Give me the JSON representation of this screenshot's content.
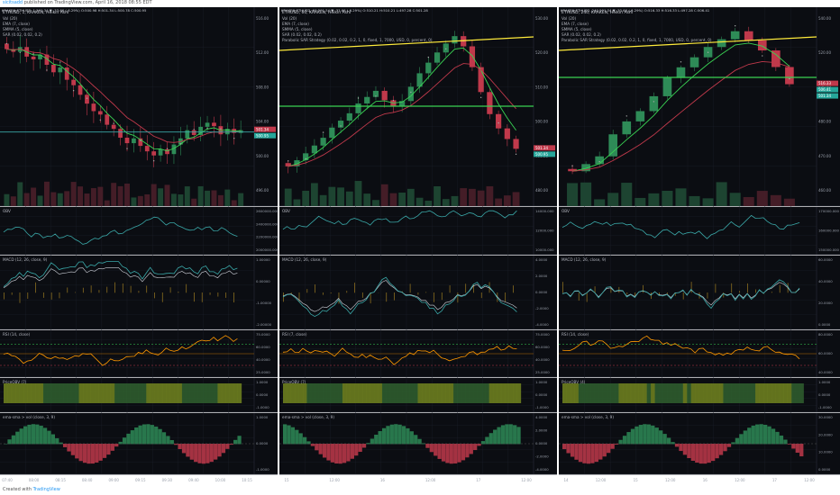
{
  "header": {
    "author": "sicitsadd",
    "published": "published on TradingView.com, April 16, 2018 08:55 EDT"
  },
  "footer": {
    "created_with": "Created with",
    "brand": "TradingView"
  },
  "colors": {
    "bg": "#0b0d12",
    "grid": "#1c2028",
    "up": "#2e8b57",
    "down": "#c0394b",
    "yellow": "#ffeb3b",
    "green": "#39d353",
    "teal": "#3aa8a8",
    "orange": "#ff9800"
  },
  "chart_data": [
    {
      "type": "candlestick",
      "title": "ETHUSD, 1, KRAKEN, Heikin Ashi",
      "symbol_line": "KRAKEN:ETHUSD, 1 501.34 ▼ -33.66 (-6.29%) O:500.98 H:501.34 L:500.78 C:500.95",
      "indicators_legend": [
        "Vol (20)",
        "EMA (7, close)",
        "SMMA (5, close)",
        "SAR (0.02, 0.02, 0.2)"
      ],
      "x_ticks": [
        "07:40",
        "08:00",
        "08:15",
        "08:40",
        "09:00",
        "09:15",
        "09:30",
        "09:40",
        "10:00",
        "10:15"
      ],
      "price_ticks": [
        "516.00",
        "512.00",
        "508.00",
        "504.00",
        "500.00",
        "496.00"
      ],
      "price_labels": [
        "501.34",
        "500.95"
      ],
      "closes": [
        513.2,
        512.8,
        513.5,
        512.1,
        511.7,
        512.4,
        510.9,
        509.8,
        510.5,
        508.7,
        507.9,
        506.5,
        505.2,
        504.1,
        503.6,
        502.1,
        501.5,
        500.2,
        499.4,
        500.1,
        499.0,
        498.2,
        497.6,
        498.5,
        497.8,
        499.2,
        500.1,
        501.3,
        500.6,
        501.8,
        502.4,
        501.9,
        500.7,
        501.5,
        500.9,
        501.3
      ],
      "indicators": [
        {
          "name": "OBV",
          "ticks": [
            "2600000.000",
            "2400000.000",
            "2200000.000",
            "2000000.000"
          ]
        },
        {
          "name": "MACD (12, 26, close, 9)",
          "ticks": [
            "1.00000",
            "0.00000",
            "-1.00000",
            "-2.00000"
          ]
        },
        {
          "name": "RSI (14, close)",
          "ticks": [
            "75.0000",
            "60.0000",
            "40.0000",
            "25.0000"
          ]
        },
        {
          "name": "PriceOBV (7)",
          "ticks": [
            "1.0000",
            "0.0000",
            "-1.0000"
          ]
        },
        {
          "name": "ema-sma > vol (close, 3, 9)",
          "ticks": [
            "1.0000",
            "0.0000",
            "-1.0000"
          ]
        }
      ]
    },
    {
      "type": "candlestick",
      "title": "ETHUSD, 60, KRAKEN, Heikin Ashi",
      "symbol_line": "KRAKEN:ETHUSD, 60 501.34 ▼ -33.66 (-6.29%) O:510.21 H:510.21 L:497.28 C:501.28",
      "indicators_legend": [
        "Vol (20)",
        "EMA (7, close)",
        "SMMA (5, close)",
        "SAR (0.02, 0.02, 0.2)",
        "Parabolic SAR Strategy (0.02, 0.02, 0.2, 1, 0, fixed, 1, 7000, USD, 0, percent, 0)"
      ],
      "x_ticks": [
        "15",
        "12:00",
        "16",
        "12:00",
        "17",
        "12:00"
      ],
      "price_ticks": [
        "530.00",
        "520.00",
        "510.00",
        "500.00",
        "490.00",
        "480.00"
      ],
      "price_labels": [
        "501.34",
        "500.95"
      ],
      "closes": [
        497.0,
        498.5,
        500.2,
        502.1,
        504.0,
        506.5,
        508.2,
        510.0,
        512.4,
        514.0,
        515.5,
        513.2,
        511.8,
        513.0,
        516.5,
        519.8,
        522.4,
        524.9,
        527.1,
        528.9,
        526.4,
        521.3,
        515.2,
        509.8,
        506.3,
        503.7,
        501.3
      ],
      "indicators": [
        {
          "name": "OBV",
          "ticks": [
            "14000.000",
            "12000.000",
            "10000.000"
          ]
        },
        {
          "name": "MACD (12, 26, close, 9)",
          "ticks": [
            "4.0000",
            "2.0000",
            "0.0000",
            "-2.0000",
            "-4.0000"
          ]
        },
        {
          "name": "RSI (7, close)",
          "ticks": [
            "75.0000",
            "60.0000",
            "40.0000",
            "25.0000"
          ]
        },
        {
          "name": "PriceOBV (7)",
          "ticks": [
            "1.0000",
            "0.0000",
            "-1.0000"
          ]
        },
        {
          "name": "ema-sma > vol (close, 3, 9)",
          "ticks": [
            "4.0000",
            "2.0000",
            "0.0000",
            "-2.0000",
            "-4.0000"
          ]
        }
      ]
    },
    {
      "type": "candlestick",
      "title": "ETHUSD, 240, KRAKEN, Heikin Ashi",
      "symbol_line": "KRAKEN:ETHUSD, 240 501.34 ▼ -33.66 (-6.29%) O:516.33 H:516.33 L:497.28 C:506.41",
      "indicators_legend": [
        "Vol (20)",
        "EMA (7, close)",
        "SMMA (5, close)",
        "SAR (0.02, 0.02, 0.2)",
        "Parabolic SAR Strategy (0.02, 0.02, 0.2, 1, 0, fixed, 1, 7000, USD, 0, percent, 0)"
      ],
      "x_ticks": [
        "14",
        "12:00",
        "15",
        "12:00",
        "16",
        "12:00",
        "17",
        "12:00"
      ],
      "price_ticks": [
        "540.00",
        "520.00",
        "500.00",
        "480.00",
        "470.00",
        "460.00"
      ],
      "price_labels": [
        "516.33",
        "506.41",
        "501.34"
      ],
      "closes": [
        476.0,
        478.5,
        481.2,
        488.9,
        493.4,
        497.0,
        502.2,
        508.6,
        512.3,
        515.8,
        519.4,
        522.1,
        524.9,
        521.7,
        518.2,
        512.4,
        506.4
      ],
      "indicators": [
        {
          "name": "OBV",
          "ticks": [
            "170000.000",
            "160000.000",
            "150000.000"
          ]
        },
        {
          "name": "MACD (12, 26, close, 9)",
          "ticks": [
            "60.0000",
            "40.0000",
            "20.0000",
            "0.0000"
          ]
        },
        {
          "name": "RSI (14, close)",
          "ticks": [
            "80.0000",
            "60.0000",
            "40.0000"
          ]
        },
        {
          "name": "PriceOBV (4)",
          "ticks": [
            "1.0000",
            "0.0000",
            "-1.0000"
          ]
        },
        {
          "name": "ema-sma > vol (close, 3, 9)",
          "ticks": [
            "30.0000",
            "20.0000",
            "10.0000",
            "0.0000"
          ]
        }
      ]
    }
  ]
}
